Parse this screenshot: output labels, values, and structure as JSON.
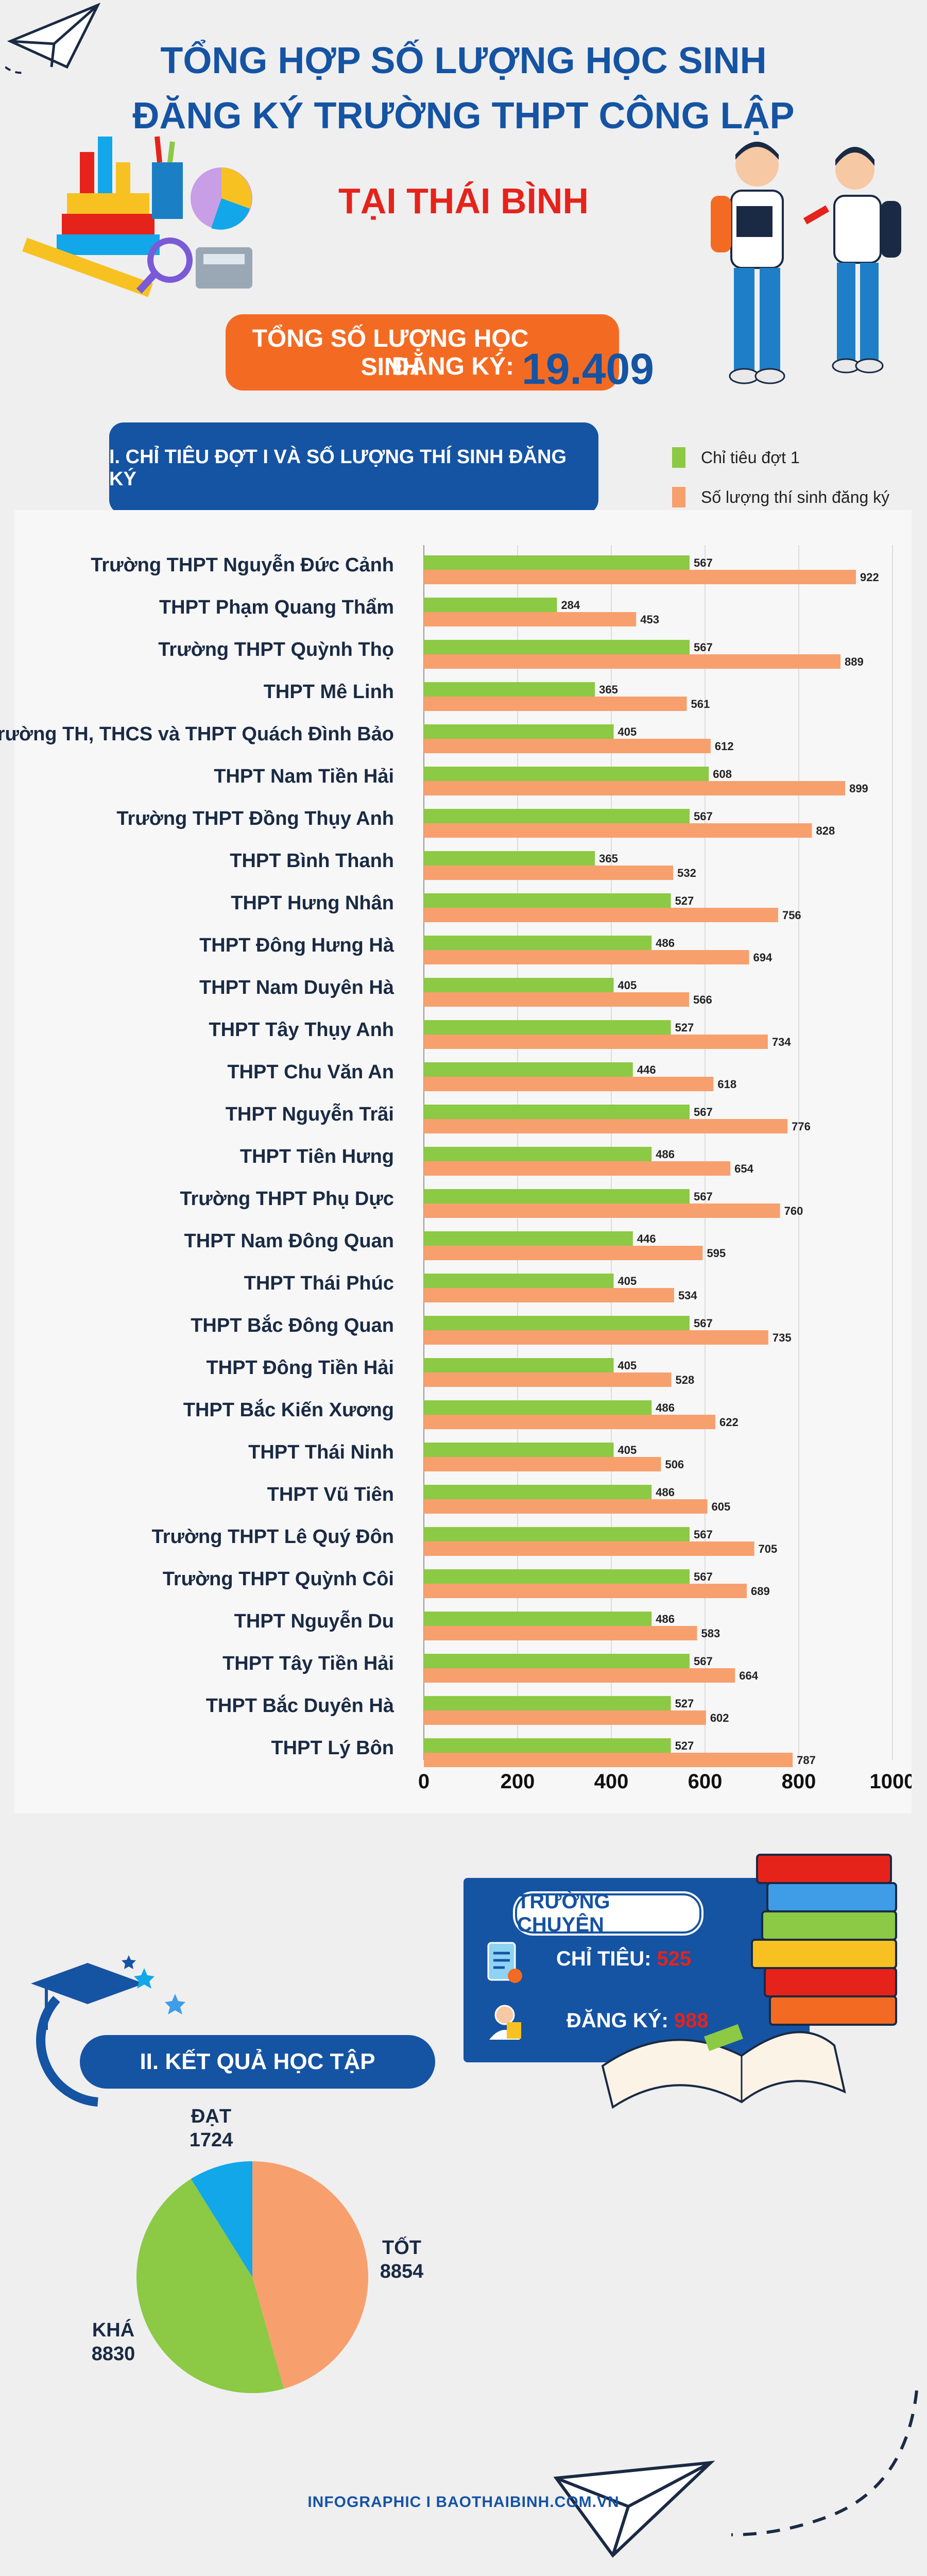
{
  "header": {
    "title_line1": "TỔNG HỢP SỐ LƯỢNG HỌC SINH",
    "title_line2": "ĐĂNG KÝ TRƯỜNG THPT CÔNG LẬP",
    "subtitle": "TẠI THÁI BÌNH"
  },
  "total": {
    "label_line1": "TỔNG SỐ LƯỢNG HỌC SINH",
    "label_line2": "ĐĂNG KÝ:",
    "value": "19.409"
  },
  "section1": {
    "title": "I. CHỈ TIÊU ĐỢT I VÀ SỐ LƯỢNG THÍ SINH ĐĂNG KÝ"
  },
  "colors": {
    "green": "#8cc944",
    "orange": "#f7a06e",
    "blue": "#1553a3",
    "red": "#e5231b",
    "cyan": "#11a7e8"
  },
  "chart_data": [
    {
      "type": "bar",
      "orientation": "horizontal",
      "title": "I. CHỈ TIÊU ĐỢT I VÀ SỐ LƯỢNG THÍ SINH ĐĂNG KÝ",
      "categories": [
        "Trường THPT Nguyễn Đức Cảnh",
        "THPT Phạm Quang Thẩm",
        "Trường THPT Quỳnh Thọ",
        "THPT Mê Linh",
        "Trường TH, THCS và THPT Quách Đình Bảo",
        "THPT Nam Tiền Hải",
        "Trường THPT Đồng Thụy Anh",
        "THPT Bình Thanh",
        "THPT Hưng Nhân",
        "THPT Đông Hưng Hà",
        "THPT Nam Duyên Hà",
        "THPT Tây Thụy Anh",
        "THPT Chu Văn An",
        "THPT Nguyễn Trãi",
        "THPT Tiên Hưng",
        "Trường THPT Phụ Dực",
        "THPT Nam Đông Quan",
        "THPT Thái Phúc",
        "THPT Bắc Đông Quan",
        "THPT Đông Tiền Hải",
        "THPT Bắc Kiến Xương",
        "THPT Thái Ninh",
        "THPT Vũ Tiên",
        "Trường THPT Lê Quý Đôn",
        "Trường THPT Quỳnh Côi",
        "THPT Nguyễn Du",
        "THPT Tây Tiền Hải",
        "THPT Bắc Duyên Hà",
        "THPT Lý Bôn"
      ],
      "series": [
        {
          "name": "Chỉ tiêu đợt 1",
          "values": [
            567,
            284,
            567,
            365,
            405,
            608,
            567,
            365,
            527,
            486,
            405,
            527,
            446,
            567,
            486,
            567,
            446,
            405,
            567,
            405,
            486,
            405,
            486,
            567,
            567,
            486,
            567,
            527,
            527
          ]
        },
        {
          "name": "Số lượng thí sinh đăng ký",
          "values": [
            922,
            453,
            889,
            561,
            612,
            899,
            828,
            532,
            756,
            694,
            566,
            734,
            618,
            776,
            654,
            760,
            595,
            534,
            735,
            528,
            622,
            506,
            605,
            705,
            689,
            583,
            664,
            602,
            787
          ]
        }
      ],
      "xlim": [
        0,
        1000
      ],
      "xticks": [
        "0",
        "200",
        "400",
        "600",
        "800",
        "1000"
      ],
      "xlabel": "",
      "ylabel": "",
      "legend": "top-right"
    },
    {
      "type": "pie",
      "title": "II. KẾT QUẢ HỌC TẬP",
      "labels": [
        "TỐT",
        "KHÁ",
        "ĐẠT"
      ],
      "values": [
        8854,
        8830,
        1724
      ],
      "value_labels": [
        "8854",
        "8830",
        "1724"
      ]
    }
  ],
  "chuyen": {
    "title": "TRƯỜNG CHUYÊN",
    "target_label": "CHỈ TIÊU:",
    "target_value": "525",
    "register_label": "ĐĂNG KÝ:",
    "register_value": "988"
  },
  "section2": {
    "title": "II. KẾT QUẢ HỌC TẬP"
  },
  "footer": {
    "text": "INFOGRAPHIC I BAOTHAIBINH.COM.VN"
  }
}
